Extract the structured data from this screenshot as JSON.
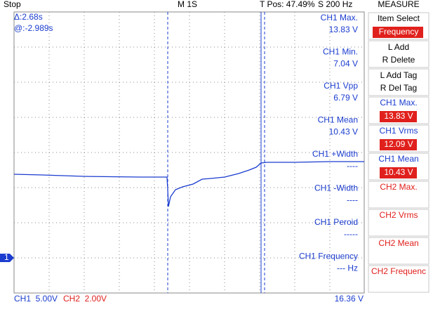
{
  "status": "Stop",
  "timebase": "M 1S",
  "trigger_position": "T Pos: 47.49%",
  "sample_rate": "S 200 Hz",
  "cursor": {
    "delta": "Δ:2.68s",
    "at": "@:-2.989s"
  },
  "measurements": [
    {
      "label": "CH1 Max.",
      "value": "13.83 V"
    },
    {
      "label": "CH1 Min.",
      "value": "7.04 V"
    },
    {
      "label": "CH1 Vpp",
      "value": "6.79 V"
    },
    {
      "label": "CH1 Mean",
      "value": "10.43 V"
    },
    {
      "label": "CH1 +Width",
      "value": "----"
    },
    {
      "label": "CH1 -Width",
      "value": "----"
    },
    {
      "label": "CH1 Peroid",
      "value": "-----"
    },
    {
      "label": "CH1 Frequency",
      "value": "--- Hz"
    }
  ],
  "channel_marker": "1",
  "footer": {
    "ch1_scale": "CH1  5.00V",
    "ch2_scale": "CH2  2.00V",
    "trigger_level": "16.36 V"
  },
  "menu": {
    "title": "MEASURE",
    "items": [
      {
        "label": "Item Select",
        "value": "Frequency"
      },
      {
        "lines": [
          "L Add",
          "R Delete"
        ]
      },
      {
        "lines": [
          "L Add Tag",
          "R Del Tag"
        ]
      },
      {
        "label": "CH1 Max.",
        "value": "13.83 V"
      },
      {
        "label": "CH1 Vrms",
        "value": "12.09 V"
      },
      {
        "label": "CH1 Mean",
        "value": "10.43 V"
      },
      {
        "label": "CH2 Max."
      },
      {
        "label": "CH2 Vrms"
      },
      {
        "label": "CH2 Mean"
      },
      {
        "label": "CH2 Frequenc"
      }
    ]
  }
}
